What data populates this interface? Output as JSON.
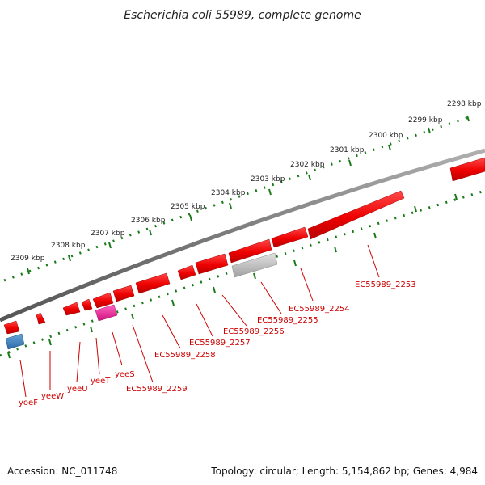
{
  "title": "Escherichia coli 55989, complete genome",
  "footer": {
    "accession": "Accession: NC_011748",
    "summary": "Topology: circular; Length: 5,154,862 bp; Genes: 4,984"
  },
  "colors": {
    "backbone": "#808080",
    "ticks": "#1a7a1a",
    "gene_forward": "#ff0000",
    "gene_label": "#cc0000",
    "pink_gene": "#ff1493",
    "gray_gene": "#b0b0b0",
    "blue_gene": "#3a7ab8"
  },
  "scale_ticks": [
    {
      "label": "2298 kbp"
    },
    {
      "label": "2299 kbp"
    },
    {
      "label": "2300 kbp"
    },
    {
      "label": "2301 kbp"
    },
    {
      "label": "2302 kbp"
    },
    {
      "label": "2303 kbp"
    },
    {
      "label": "2304 kbp"
    },
    {
      "label": "2305 kbp"
    },
    {
      "label": "2306 kbp"
    },
    {
      "label": "2307 kbp"
    },
    {
      "label": "2308 kbp"
    },
    {
      "label": "2309 kbp"
    }
  ],
  "gene_labels": [
    {
      "label": "EC55989_2253"
    },
    {
      "label": "EC55989_2254"
    },
    {
      "label": "EC55989_2255"
    },
    {
      "label": "EC55989_2256"
    },
    {
      "label": "EC55989_2257"
    },
    {
      "label": "EC55989_2258"
    },
    {
      "label": "EC55989_2259"
    },
    {
      "label": "yeeS"
    },
    {
      "label": "yeeT"
    },
    {
      "label": "yeeU"
    },
    {
      "label": "yeeW"
    },
    {
      "label": "yoeF"
    }
  ]
}
